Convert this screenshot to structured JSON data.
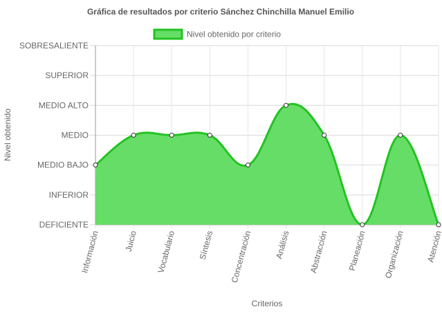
{
  "chart_data": {
    "type": "area",
    "title": "Gráfica de resultados por criterio Sánchez Chinchilla Manuel Emilio",
    "xlabel": "Criterios",
    "ylabel": "Nivel obtenido",
    "categories": [
      "Información",
      "Juicio",
      "Vocabulario",
      "Síntesis",
      "Concentración",
      "Análisis",
      "Abstracción",
      "Planeación",
      "Organización",
      "Atención"
    ],
    "y_levels": [
      "DEFICIENTE",
      "INFERIOR",
      "MEDIO BAJO",
      "MEDIO",
      "MEDIO ALTO",
      "SUPERIOR",
      "SOBRESALIENTE"
    ],
    "ylim": [
      0,
      6
    ],
    "grid": true,
    "legend_position": "top-center",
    "series": [
      {
        "name": "Nivel obtenido por criterio",
        "values": [
          2,
          3,
          3,
          3,
          2,
          4,
          3,
          0,
          3,
          0
        ],
        "color": "#22C322",
        "fill": "#66DD66"
      }
    ]
  }
}
